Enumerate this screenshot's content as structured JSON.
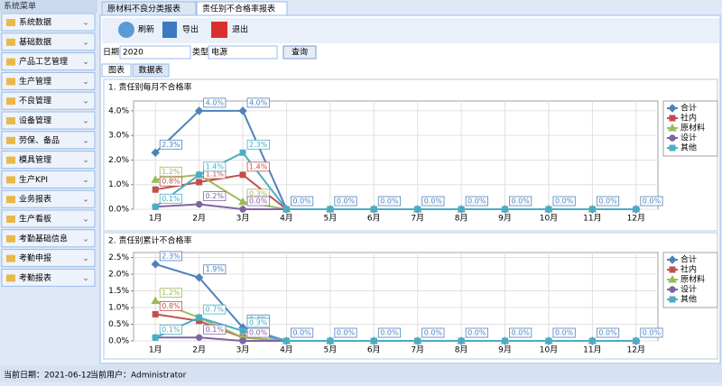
{
  "sidebar": {
    "title": "系统菜单",
    "items": [
      "系统数据",
      "基础数据",
      "产品工艺管理",
      "生产管理",
      "不良管理",
      "设备管理",
      "劳保、备品",
      "模具管理",
      "生产KPI",
      "业务报表",
      "生产看板",
      "考勤基础信息",
      "考勤申报",
      "考勤报表"
    ]
  },
  "tabs": [
    "原材料不良分类报表",
    "责任别不合格率报表"
  ],
  "toolbar": {
    "refresh": "刷新",
    "export": "导出",
    "exit": "退出"
  },
  "filters": {
    "date_label": "日期",
    "date_value": "2020",
    "type_label": "类型",
    "type_value": "电源",
    "query": "查询"
  },
  "subtabs": [
    "图表",
    "数据表"
  ],
  "status": {
    "date": "当前日期：2021-06-12",
    "user": "当前用户：Administrator"
  },
  "chart_data": [
    {
      "type": "line",
      "title": "1. 责任别每月不合格率",
      "categories": [
        "1月",
        "2月",
        "3月",
        "4月",
        "5月",
        "6月",
        "7月",
        "8月",
        "9月",
        "10月",
        "11月",
        "12月"
      ],
      "ylim": [
        0,
        4.4
      ],
      "yticks": [
        {
          "value": 0,
          "label": "0.0%"
        },
        {
          "value": 1,
          "label": "1.0%"
        },
        {
          "value": 2,
          "label": "2.0%"
        },
        {
          "value": 3,
          "label": "3.0%"
        },
        {
          "value": 4,
          "label": "4.0%"
        }
      ],
      "grid": true,
      "series": [
        {
          "name": "合计",
          "color": "#4f81bd",
          "marker": "diamond",
          "values": [
            2.3,
            4.0,
            4.0,
            0,
            0,
            0,
            0,
            0,
            0,
            0,
            0,
            0
          ],
          "value_labels": [
            "2.3%",
            "4.0%",
            "4.0%",
            "0.0%",
            "0.0%",
            "0.0%",
            "0.0%",
            "0.0%",
            "0.0%",
            "0.0%",
            "0.0%",
            "0.0%"
          ]
        },
        {
          "name": "社内",
          "color": "#c0504d",
          "marker": "square",
          "values": [
            0.8,
            1.1,
            1.4,
            0,
            0,
            0,
            0,
            0,
            0,
            0,
            0,
            0
          ],
          "value_labels": [
            "0.8%",
            "1.1%",
            "1.4%",
            null,
            null,
            null,
            null,
            null,
            null,
            null,
            null,
            null
          ]
        },
        {
          "name": "原材料",
          "color": "#9bbb59",
          "marker": "triangle",
          "values": [
            1.2,
            1.4,
            0.3,
            0,
            0,
            0,
            0,
            0,
            0,
            0,
            0,
            0
          ],
          "value_labels": [
            "1.2%",
            null,
            "0.3%",
            null,
            null,
            null,
            null,
            null,
            null,
            null,
            null,
            null
          ]
        },
        {
          "name": "设计",
          "color": "#8064a2",
          "marker": "circle",
          "values": [
            0.1,
            0.2,
            0.0,
            0,
            0,
            0,
            0,
            0,
            0,
            0,
            0,
            0
          ],
          "value_labels": [
            null,
            "0.2%",
            "0.0%",
            null,
            null,
            null,
            null,
            null,
            null,
            null,
            null,
            null
          ]
        },
        {
          "name": "其他",
          "color": "#4bacc6",
          "marker": "square",
          "values": [
            0.1,
            1.4,
            2.3,
            0,
            0,
            0,
            0,
            0,
            0,
            0,
            0,
            0
          ],
          "value_labels": [
            "0.1%",
            "1.4%",
            "2.3%",
            null,
            null,
            null,
            null,
            null,
            null,
            null,
            null,
            null
          ]
        }
      ]
    },
    {
      "type": "line",
      "title": "2. 责任别累计不合格率",
      "categories": [
        "1月",
        "2月",
        "3月",
        "4月",
        "5月",
        "6月",
        "7月",
        "8月",
        "9月",
        "10月",
        "11月",
        "12月"
      ],
      "ylim": [
        0,
        2.65
      ],
      "yticks": [
        {
          "value": 0,
          "label": "0.0%"
        },
        {
          "value": 0.5,
          "label": "0.5%"
        },
        {
          "value": 1,
          "label": "1.0%"
        },
        {
          "value": 1.5,
          "label": "1.5%"
        },
        {
          "value": 2,
          "label": "2.0%"
        },
        {
          "value": 2.5,
          "label": "2.5%"
        }
      ],
      "grid": true,
      "series": [
        {
          "name": "合计",
          "color": "#4f81bd",
          "marker": "diamond",
          "values": [
            2.3,
            1.9,
            0.4,
            0,
            0,
            0,
            0,
            0,
            0,
            0,
            0,
            0
          ],
          "value_labels": [
            "2.3%",
            "1.9%",
            "0.4%",
            "0.0%",
            "0.0%",
            "0.0%",
            "0.0%",
            "0.0%",
            "0.0%",
            "0.0%",
            "0.0%",
            "0.0%"
          ]
        },
        {
          "name": "社内",
          "color": "#c0504d",
          "marker": "square",
          "values": [
            0.8,
            0.6,
            0.1,
            0,
            0,
            0,
            0,
            0,
            0,
            0,
            0,
            0
          ],
          "value_labels": [
            "0.8%",
            null,
            null,
            null,
            null,
            null,
            null,
            null,
            null,
            null,
            null,
            null
          ]
        },
        {
          "name": "原材料",
          "color": "#9bbb59",
          "marker": "triangle",
          "values": [
            1.2,
            0.7,
            0.1,
            0,
            0,
            0,
            0,
            0,
            0,
            0,
            0,
            0
          ],
          "value_labels": [
            "1.2%",
            null,
            null,
            null,
            null,
            null,
            null,
            null,
            null,
            null,
            null,
            null
          ]
        },
        {
          "name": "设计",
          "color": "#8064a2",
          "marker": "circle",
          "values": [
            0.1,
            0.1,
            0.0,
            0,
            0,
            0,
            0,
            0,
            0,
            0,
            0,
            0
          ],
          "value_labels": [
            null,
            "0.1%",
            "0.0%",
            null,
            null,
            null,
            null,
            null,
            null,
            null,
            null,
            null
          ]
        },
        {
          "name": "其他",
          "color": "#4bacc6",
          "marker": "square",
          "values": [
            0.1,
            0.7,
            0.3,
            0,
            0,
            0,
            0,
            0,
            0,
            0,
            0,
            0
          ],
          "value_labels": [
            "0.1%",
            "0.7%",
            "0.3%",
            null,
            null,
            null,
            null,
            null,
            null,
            null,
            null,
            null
          ]
        }
      ]
    }
  ]
}
